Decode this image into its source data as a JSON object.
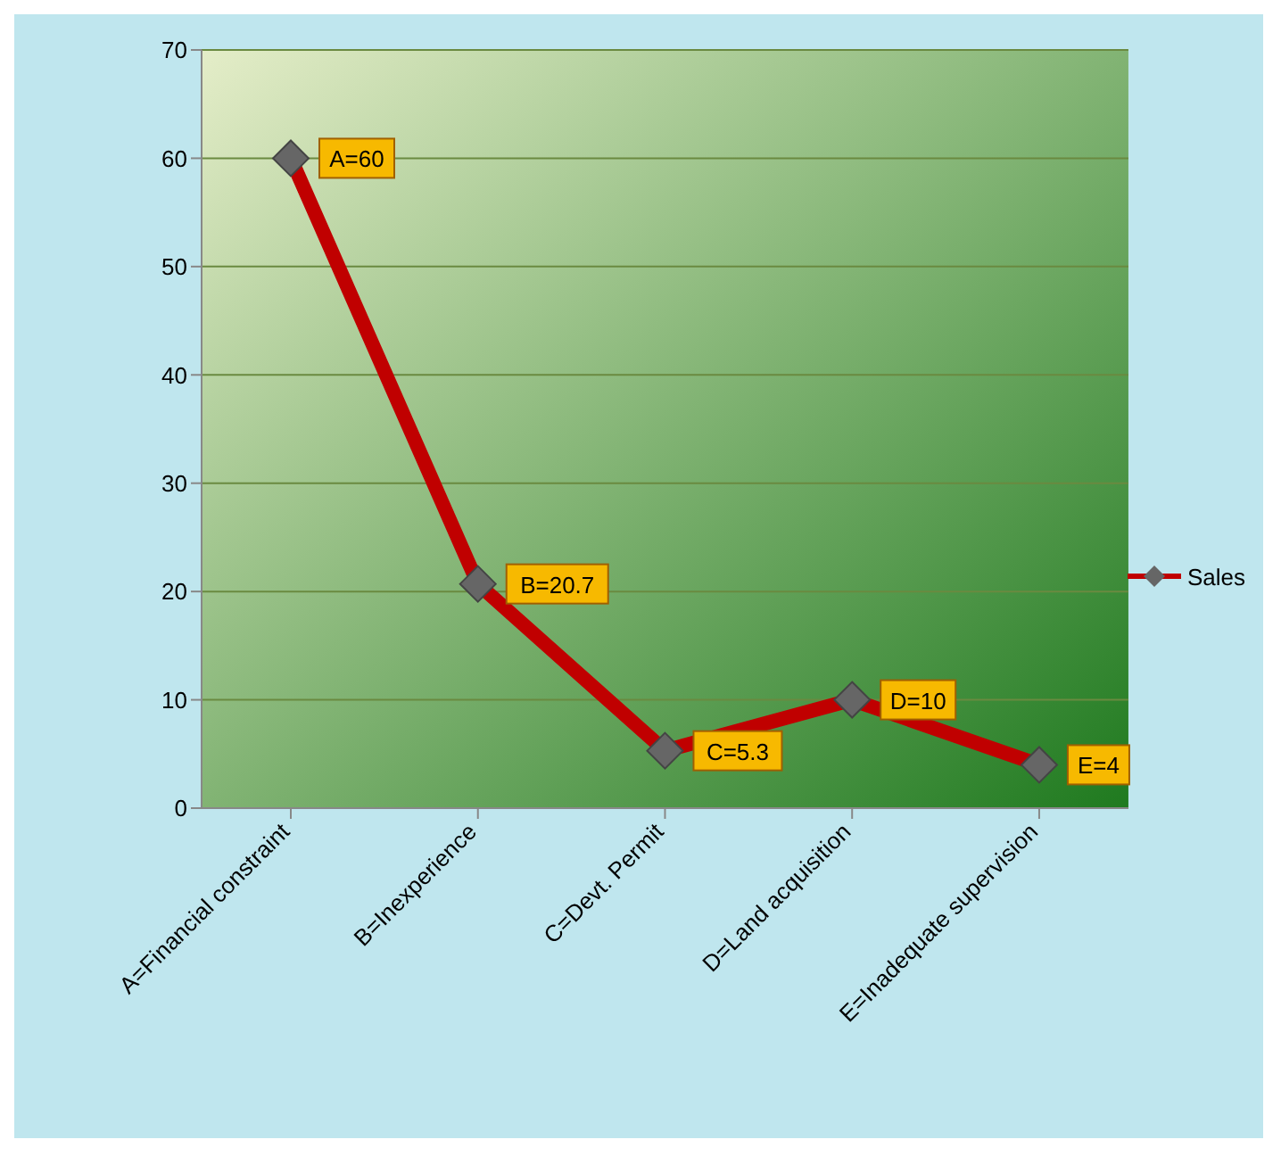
{
  "chart_data": {
    "type": "line",
    "categories": [
      "A=Financial constraint",
      "B=Inexperience",
      "C=Devt. Permit",
      "D=Land acquisition",
      "E=Inadequate supervision"
    ],
    "series": [
      {
        "name": "Sales",
        "color": "#c00000",
        "values": [
          60,
          20.7,
          5.3,
          10,
          4
        ],
        "value_labels": [
          "A=60",
          "B=20.7",
          "C=5.3",
          "D=10",
          "E=4"
        ]
      }
    ],
    "ylim": [
      0,
      70
    ],
    "yticks": [
      0,
      10,
      20,
      30,
      40,
      50,
      60,
      70
    ],
    "grid": "y",
    "legend": "right",
    "marker": "diamond",
    "line_style": "solid"
  }
}
